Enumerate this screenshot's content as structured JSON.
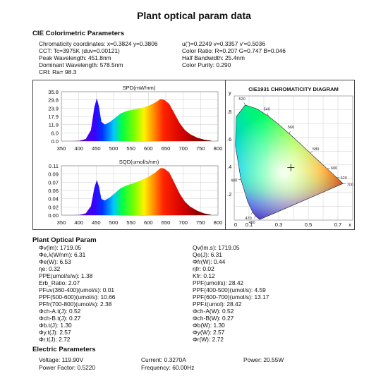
{
  "title": "Plant optical param data",
  "cie": {
    "heading": "CIE Colorimetric Parameters",
    "lines_left": [
      "Chromaticity coordinates: x=0.3824 y=0.3806",
      "CCT: Tc=3975K (duv=0.00121)",
      "Peak Wavelength: 451.8nm",
      "Dominant Wavelength: 578.5nm",
      "CRI: Ra= 98.3"
    ],
    "lines_right": [
      "u(')=0.2249 v=0.3357 v'=0.5036",
      "Color Ratio: R=0.207  G=0.747  B=0.046",
      "Half Bandwidth: 25.4nm",
      "Color Purity: 0.290"
    ]
  },
  "spd_chart": {
    "title": "SPD(mW/nm)",
    "y_ticks": [
      "35.8",
      "29.8",
      "23.9",
      "17.9",
      "11.9",
      "6.0",
      "0.0"
    ],
    "x_ticks": [
      "350",
      "400",
      "450",
      "500",
      "550",
      "600",
      "650",
      "700",
      "750",
      "800"
    ]
  },
  "sqd_chart": {
    "title": "SQD(umol/s/nm)",
    "y_ticks": [
      "0.11",
      "0.09",
      "0.07",
      "0.06",
      "0.04",
      "0.02",
      "0.00"
    ],
    "x_ticks": [
      "350",
      "400",
      "450",
      "500",
      "550",
      "600",
      "650",
      "700",
      "750",
      "800"
    ]
  },
  "chart_data": [
    {
      "type": "area",
      "title": "SPD(mW/nm)",
      "ylim": [
        0,
        35.8
      ],
      "xlim": [
        350,
        800
      ],
      "x": [
        380,
        400,
        420,
        435,
        445,
        452,
        458,
        465,
        475,
        490,
        505,
        520,
        540,
        560,
        580,
        600,
        620,
        635,
        645,
        660,
        675,
        690,
        705,
        720,
        740,
        760,
        780
      ],
      "y": [
        0,
        0.2,
        1.5,
        8,
        25,
        31,
        25,
        14,
        12,
        14,
        17,
        20,
        22,
        23,
        24,
        25.5,
        28,
        30.5,
        30,
        27,
        20,
        13,
        8,
        5,
        2.5,
        1,
        0.3
      ]
    },
    {
      "type": "area",
      "title": "SQD(umol/s/nm)",
      "ylim": [
        0,
        0.11
      ],
      "xlim": [
        350,
        800
      ],
      "x": [
        380,
        400,
        420,
        435,
        445,
        452,
        458,
        465,
        475,
        490,
        505,
        520,
        540,
        560,
        580,
        600,
        620,
        635,
        645,
        660,
        675,
        690,
        705,
        720,
        740,
        760,
        780
      ],
      "y": [
        0,
        0.0005,
        0.004,
        0.02,
        0.062,
        0.078,
        0.064,
        0.036,
        0.033,
        0.04,
        0.05,
        0.06,
        0.067,
        0.072,
        0.078,
        0.085,
        0.095,
        0.105,
        0.104,
        0.095,
        0.072,
        0.048,
        0.03,
        0.019,
        0.01,
        0.004,
        0.001
      ]
    },
    {
      "type": "scatter",
      "title": "CIE1931 CHROMATICITY DIAGRAM",
      "xlim": [
        0,
        0.8
      ],
      "ylim": [
        0,
        0.9
      ],
      "point": {
        "x": 0.3824,
        "y": 0.3806
      },
      "locus": [
        [
          0.1741,
          0.005
        ],
        [
          0.1738,
          0.0049
        ],
        [
          0.1721,
          0.0048
        ],
        [
          0.1644,
          0.0109
        ],
        [
          0.144,
          0.0297
        ],
        [
          0.1241,
          0.0578
        ],
        [
          0.0913,
          0.1327
        ],
        [
          0.0454,
          0.295
        ],
        [
          0.0082,
          0.5384
        ],
        [
          0.0139,
          0.7502
        ],
        [
          0.0743,
          0.8338
        ],
        [
          0.1547,
          0.8059
        ],
        [
          0.2296,
          0.7543
        ],
        [
          0.3016,
          0.6923
        ],
        [
          0.3731,
          0.6245
        ],
        [
          0.4441,
          0.5547
        ],
        [
          0.5125,
          0.4866
        ],
        [
          0.5752,
          0.4242
        ],
        [
          0.627,
          0.3725
        ],
        [
          0.6658,
          0.334
        ],
        [
          0.6915,
          0.3083
        ],
        [
          0.7079,
          0.292
        ],
        [
          0.719,
          0.2809
        ],
        [
          0.7347,
          0.2653
        ]
      ],
      "wavelength_labels": [
        {
          "label": "520",
          "x": 0.0743,
          "y": 0.8338
        },
        {
          "label": "540",
          "x": 0.2296,
          "y": 0.7543
        },
        {
          "label": "560",
          "x": 0.3731,
          "y": 0.6245
        },
        {
          "label": "580",
          "x": 0.5125,
          "y": 0.4866
        },
        {
          "label": "600",
          "x": 0.627,
          "y": 0.3725
        },
        {
          "label": "620",
          "x": 0.6915,
          "y": 0.3083
        },
        {
          "label": "700",
          "x": 0.7347,
          "y": 0.2653
        },
        {
          "label": "490",
          "x": 0.0454,
          "y": 0.295
        },
        {
          "label": "470",
          "x": 0.1241,
          "y": 0.0578
        },
        {
          "label": "460",
          "x": 0.144,
          "y": 0.0297
        }
      ]
    }
  ],
  "cie_diagram": {
    "title": "CIE1931 CHROMATICITY DIAGRAM",
    "axis_y": "y",
    "axis_x": "x",
    "y_ticks": [
      ".8",
      ".6",
      ".4",
      ".2"
    ],
    "x_ticks": [
      "0",
      "0.1",
      "0.3",
      "0.5",
      "0.7"
    ]
  },
  "plant": {
    "heading": "Plant Optical Param",
    "left": [
      "Φv(lm):  1719.05",
      "Φe,λ(W/nm):  6.31",
      "Φe(W):  6.53",
      "ηe:  0.32",
      "PPE(umol/s/w):  1.38",
      "Erb_Ratio:  2.07",
      "PFuv(360-400)(umol/s):  0.01",
      "PPF(500-600)(umol/s):  10.66",
      "PFfr(700-800)(umol/s):  2.38",
      "Φch-A.t(J):  0.52",
      "Φch-B.t(J):  0.27",
      "Φb.t(J):  1.30",
      "Φy.t(J):  2.57",
      "Φr.t(J):  2.72"
    ],
    "right": [
      "Qv(lm.s):  1719.05",
      "Qe(J):  6.31",
      "Φfr(W):  0.44",
      "ηfr:  0.02",
      "Kfr:  0.12",
      "PPF(umol/s):  28.42",
      "PPF(400-500)(umol/s):  4.59",
      "PPF(600-700)(umol/s):  13.17",
      "PPF.t(umol):  28.42",
      "Φch-A(W):  0.52",
      "Φch-B(W):  0.27",
      "Φb(W):  1.30",
      "Φy(W):  2.57",
      "Φr(W):  2.72"
    ]
  },
  "electric": {
    "heading": "Electric Parameters",
    "voltage": "Voltage: 119.90V",
    "current": "Current: 0.3270A",
    "power": "Power: 20.55W",
    "power_factor": "Power Factor: 0.5220",
    "frequency": "Frequency: 60.00Hz"
  }
}
